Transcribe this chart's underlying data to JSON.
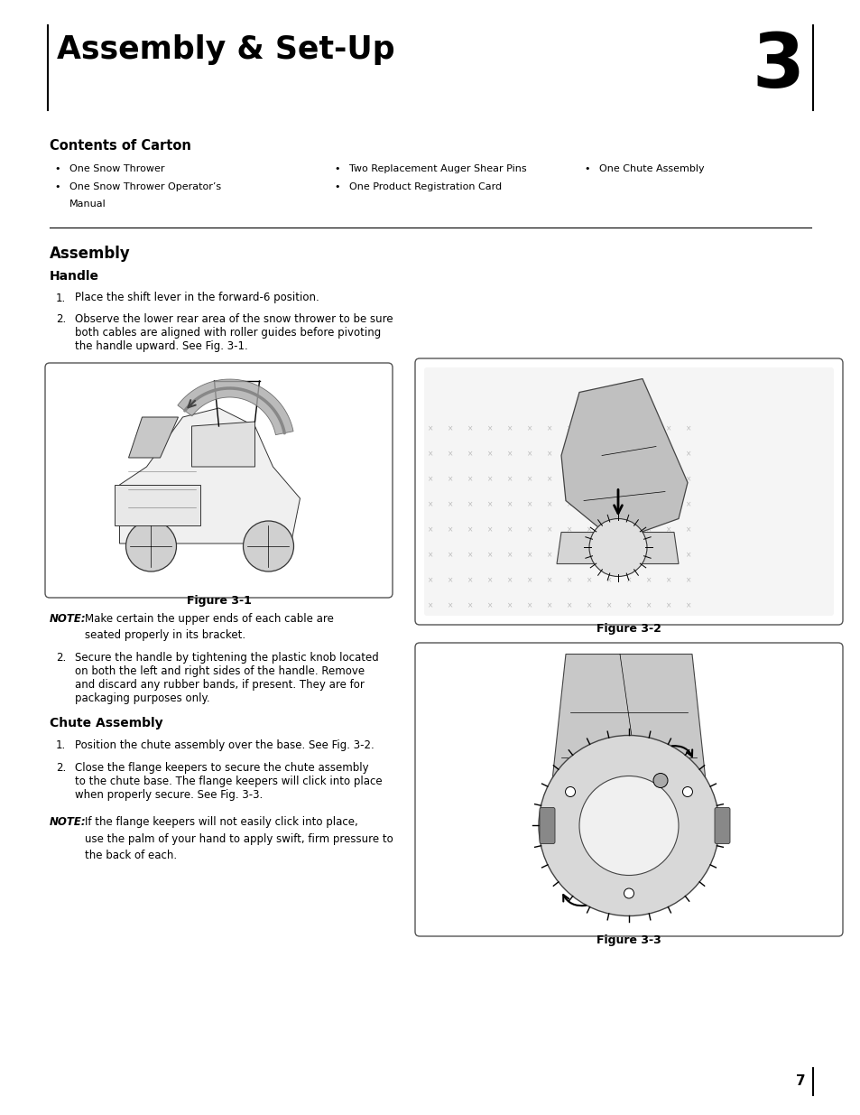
{
  "bg_color": "#ffffff",
  "page_width": 9.54,
  "page_height": 12.35,
  "ml": 0.55,
  "mr": 0.55,
  "chapter_title": "Assembly & Set-Up",
  "chapter_number": "3",
  "section1_title": "Contents of Carton",
  "bullet_col1_items": [
    "One Snow Thrower",
    "One Snow Thrower Operator’s",
    "Manual"
  ],
  "bullet_col2_items": [
    "Two Replacement Auger Shear Pins",
    "One Product Registration Card"
  ],
  "bullet_col3_items": [
    "One Chute Assembly"
  ],
  "section2_title": "Assembly",
  "subsec1_title": "Handle",
  "handle_step1": "Place the shift lever in the forward-6 position.",
  "handle_step2": "Observe the lower rear area of the snow thrower to be sure\nboth cables are aligned with roller guides before pivoting\nthe handle upward. See Fig. 3-1.",
  "fig1_label": "Figure 3-1",
  "note1_bold": "NOTE:",
  "note1_rest": " Make certain the upper ends of each cable are\nseated properly in its bracket.",
  "handle_step2b": "Secure the handle by tightening the plastic knob located\non both the left and right sides of the handle. Remove\nand discard any rubber bands, if present. They are for\npackaging purposes only.",
  "subsec2_title": "Chute Assembly",
  "chute_step1": "Position the chute assembly over the base. See Fig. 3-2.",
  "chute_step2": "Close the flange keepers to secure the chute assembly\nto the chute base. The flange keepers will click into place\nwhen properly secure. See Fig. 3-3.",
  "note2_bold": "NOTE:",
  "note2_rest": " If the flange keepers will not easily click into place,\nuse the palm of your hand to apply swift, firm pressure to\nthe back of each.",
  "fig2_label": "Figure 3-2",
  "fig3_label": "Figure 3-3",
  "page_number": "7",
  "text_gray": "#404040",
  "body_fs": 8.5,
  "lh": 0.185
}
